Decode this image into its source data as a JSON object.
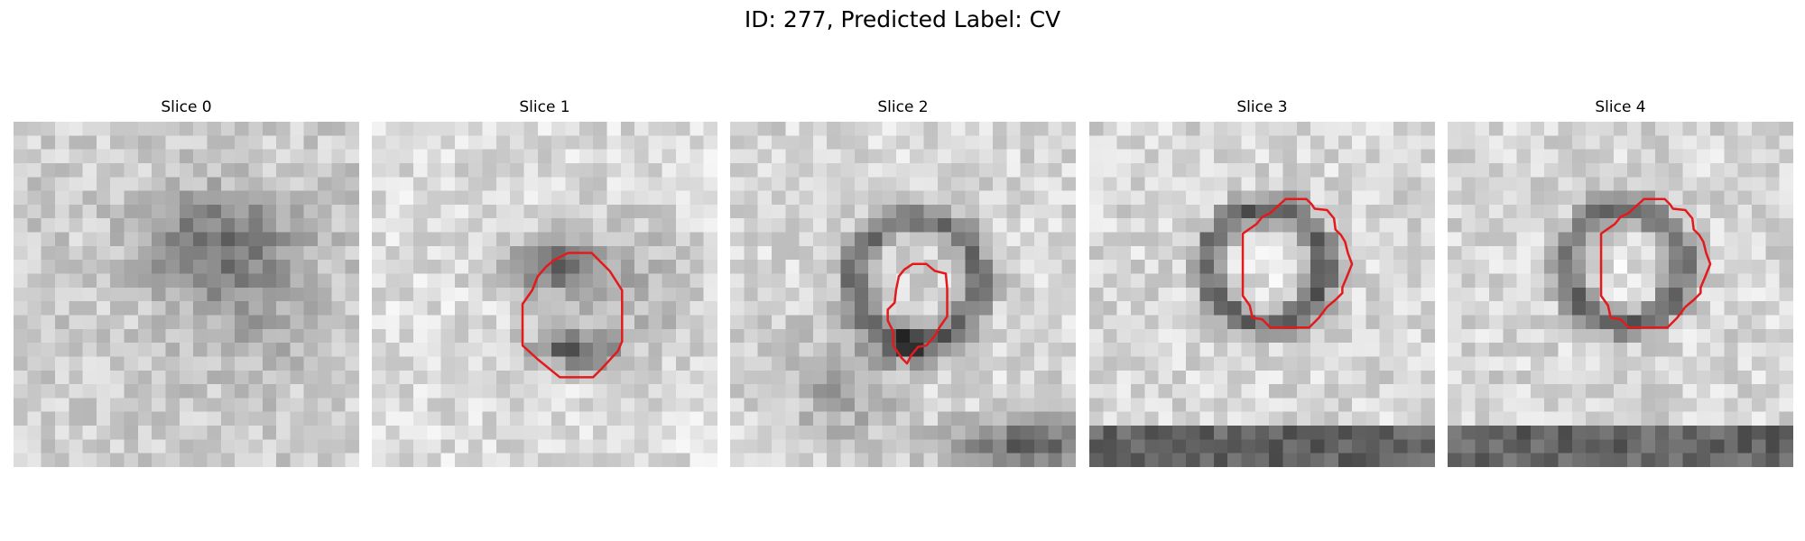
{
  "title": "ID: 277, Predicted Label: CV",
  "panels": [
    {
      "label": "Slice 0",
      "has_contour": false,
      "contour": []
    },
    {
      "label": "Slice 1",
      "has_contour": true,
      "contour": [
        [
          14.2,
          9.5
        ],
        [
          15.9,
          9.5
        ],
        [
          17.2,
          10.8
        ],
        [
          18.1,
          12.2
        ],
        [
          18.1,
          15.9
        ],
        [
          17.8,
          16.6
        ],
        [
          16.6,
          17.9
        ],
        [
          16.0,
          18.5
        ],
        [
          13.6,
          18.5
        ],
        [
          12.0,
          17.2
        ],
        [
          10.9,
          16.2
        ],
        [
          10.9,
          13.2
        ],
        [
          11.6,
          12.2
        ],
        [
          12.0,
          11.2
        ],
        [
          12.6,
          10.5
        ],
        [
          13.2,
          10.0
        ]
      ]
    },
    {
      "label": "Slice 2",
      "has_contour": true,
      "contour": [
        [
          13.2,
          10.3
        ],
        [
          14.2,
          10.3
        ],
        [
          14.8,
          10.8
        ],
        [
          15.6,
          11.0
        ],
        [
          15.7,
          12.1
        ],
        [
          15.7,
          14.1
        ],
        [
          15.2,
          14.8
        ],
        [
          14.8,
          15.5
        ],
        [
          14.2,
          16.2
        ],
        [
          13.6,
          16.3
        ],
        [
          13.1,
          16.9
        ],
        [
          12.8,
          17.5
        ],
        [
          12.4,
          17.1
        ],
        [
          11.8,
          16.2
        ],
        [
          11.8,
          15.2
        ],
        [
          11.4,
          14.4
        ],
        [
          11.4,
          13.6
        ],
        [
          11.9,
          13.1
        ],
        [
          12.0,
          12.2
        ],
        [
          12.2,
          11.2
        ],
        [
          12.6,
          10.7
        ]
      ]
    },
    {
      "label": "Slice 3",
      "has_contour": true,
      "contour": [
        [
          14.2,
          5.6
        ],
        [
          15.7,
          5.6
        ],
        [
          16.1,
          6.0
        ],
        [
          16.3,
          6.3
        ],
        [
          17.2,
          6.4
        ],
        [
          17.7,
          7.0
        ],
        [
          17.8,
          7.8
        ],
        [
          18.2,
          8.2
        ],
        [
          18.5,
          8.7
        ],
        [
          18.7,
          9.5
        ],
        [
          19.0,
          10.3
        ],
        [
          18.6,
          11.3
        ],
        [
          18.3,
          12.0
        ],
        [
          18.3,
          12.4
        ],
        [
          17.8,
          12.9
        ],
        [
          17.2,
          13.4
        ],
        [
          16.6,
          14.2
        ],
        [
          15.9,
          14.9
        ],
        [
          13.1,
          14.9
        ],
        [
          12.5,
          14.3
        ],
        [
          11.8,
          14.2
        ],
        [
          11.6,
          13.3
        ],
        [
          11.1,
          12.6
        ],
        [
          11.1,
          8.1
        ],
        [
          12.1,
          7.4
        ],
        [
          12.5,
          6.9
        ],
        [
          13.1,
          6.6
        ]
      ]
    },
    {
      "label": "Slice 4",
      "has_contour": true,
      "contour": [
        [
          14.2,
          5.6
        ],
        [
          15.7,
          5.6
        ],
        [
          16.1,
          6.0
        ],
        [
          16.3,
          6.3
        ],
        [
          17.2,
          6.4
        ],
        [
          17.7,
          7.0
        ],
        [
          17.8,
          7.8
        ],
        [
          18.2,
          8.2
        ],
        [
          18.5,
          8.7
        ],
        [
          18.7,
          9.5
        ],
        [
          19.0,
          10.3
        ],
        [
          18.6,
          11.3
        ],
        [
          18.3,
          12.0
        ],
        [
          18.3,
          12.4
        ],
        [
          17.8,
          12.9
        ],
        [
          17.2,
          13.4
        ],
        [
          16.6,
          14.2
        ],
        [
          15.9,
          14.9
        ],
        [
          13.1,
          14.9
        ],
        [
          12.5,
          14.3
        ],
        [
          11.8,
          14.2
        ],
        [
          11.6,
          13.3
        ],
        [
          11.1,
          12.6
        ],
        [
          11.1,
          8.1
        ],
        [
          12.1,
          7.4
        ],
        [
          12.5,
          6.9
        ],
        [
          13.1,
          6.6
        ]
      ]
    }
  ]
}
